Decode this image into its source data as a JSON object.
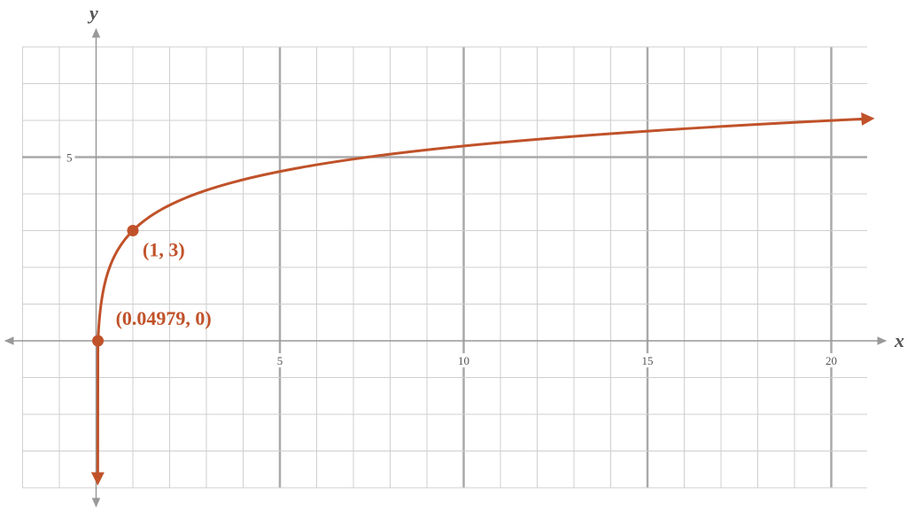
{
  "chart_data": {
    "type": "line",
    "title": "",
    "xlabel": "x",
    "ylabel": "y",
    "xlim": [
      -2.5,
      21
    ],
    "ylim": [
      -4,
      8
    ],
    "x_ticks": [
      5,
      10,
      15,
      20
    ],
    "y_ticks": [
      5
    ],
    "x_tick_labels": [
      "5",
      "10",
      "15",
      "20"
    ],
    "y_tick_labels": [
      "5"
    ],
    "grid": true,
    "curve_color": "#c0522a",
    "series": [
      {
        "x": [
          0.0498,
          0.06,
          0.08,
          0.1,
          0.15,
          0.2,
          0.3,
          0.4,
          0.5,
          0.6,
          0.8,
          1,
          1.5,
          2,
          3,
          4,
          5,
          6,
          7,
          8,
          10,
          12,
          15,
          18,
          21
        ],
        "y": [
          0,
          0.19,
          0.48,
          0.7,
          1.1,
          1.39,
          1.8,
          2.08,
          2.31,
          2.49,
          2.78,
          3.0,
          3.41,
          3.69,
          4.1,
          4.39,
          4.61,
          4.79,
          4.95,
          5.08,
          5.3,
          5.48,
          5.71,
          5.89,
          6.04
        ]
      }
    ],
    "annotations": [
      {
        "label": "(1, 3)",
        "x": 1,
        "y": 3
      },
      {
        "label": "(0.04979, 0)",
        "x": 0.04979,
        "y": 0
      }
    ]
  }
}
